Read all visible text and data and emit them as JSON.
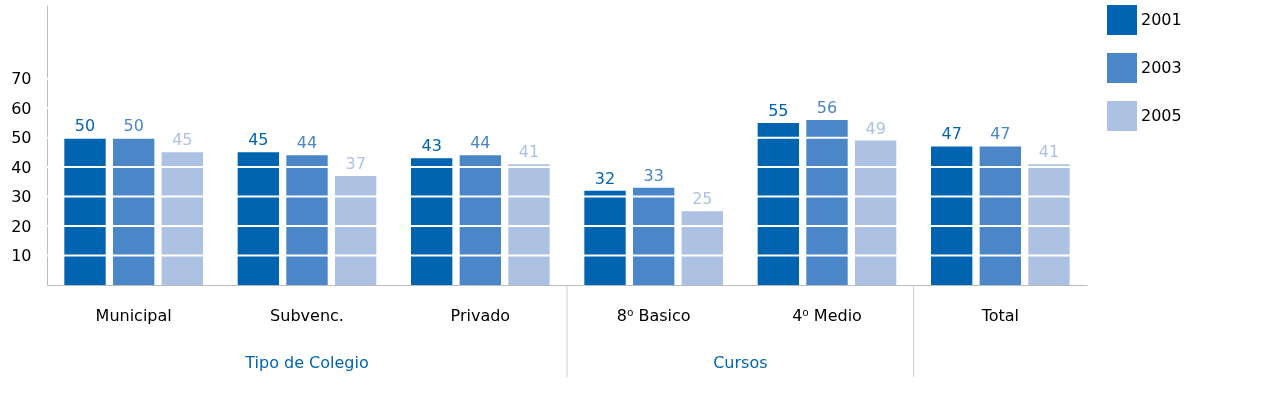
{
  "chart_data": {
    "type": "bar",
    "categories": [
      "Municipal",
      "Subvenc.",
      "Privado",
      "8⁰ Basico",
      "4⁰ Medio",
      "Total"
    ],
    "series": [
      {
        "name": "2001",
        "color": "#0064b0",
        "values": [
          50,
          45,
          43,
          32,
          55,
          47
        ]
      },
      {
        "name": "2003",
        "color": "#4a86c8",
        "values": [
          50,
          44,
          44,
          33,
          56,
          47
        ]
      },
      {
        "name": "2005",
        "color": "#adc2e3",
        "values": [
          45,
          37,
          41,
          25,
          49,
          41
        ]
      }
    ],
    "ylim": [
      0,
      95
    ],
    "yticks": [
      10,
      20,
      30,
      40,
      50,
      60,
      70
    ],
    "grid": "y",
    "legend": "right",
    "data_labels": true,
    "annotations": [
      "Tipo de Colegio",
      "Cursos"
    ]
  }
}
